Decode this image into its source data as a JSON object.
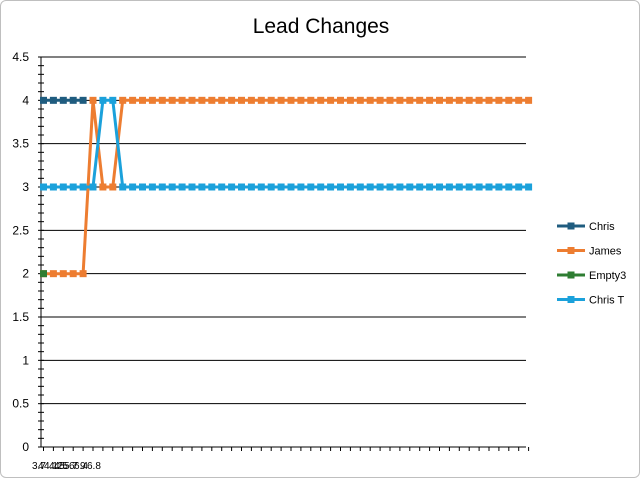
{
  "chart_data": {
    "type": "line",
    "title": "Lead Changes",
    "xlabel": "",
    "ylabel": "",
    "ylim": [
      0,
      4.5
    ],
    "y_ticks": [
      "0",
      "0.5",
      "1",
      "1.5",
      "2",
      "2.5",
      "3",
      "3.5",
      "4",
      "4.5"
    ],
    "x_tick_labels": [
      "3.7",
      "4",
      "4.1",
      "4.2",
      "4.5",
      "5",
      "5.7",
      "6",
      "6.4",
      "9",
      "6.8"
    ],
    "grid": true,
    "legend_position": "right",
    "x": [
      1,
      2,
      3,
      4,
      5,
      6,
      7,
      8,
      9,
      10,
      11,
      12,
      13,
      14,
      15,
      16,
      17,
      18,
      19,
      20,
      21,
      22,
      23,
      24,
      25,
      26,
      27,
      28,
      29,
      30,
      31,
      32,
      33,
      34,
      35,
      36,
      37,
      38,
      39,
      40,
      41,
      42,
      43,
      44,
      45,
      46,
      47,
      48,
      49,
      50
    ],
    "series": [
      {
        "name": "Chris",
        "color": "#1f5c7f",
        "values": [
          4,
          4,
          4,
          4,
          4,
          null,
          null,
          null,
          null,
          null,
          null,
          null,
          null,
          null,
          null,
          null,
          null,
          null,
          null,
          null,
          null,
          null,
          null,
          null,
          null,
          null,
          null,
          null,
          null,
          null,
          null,
          null,
          null,
          null,
          null,
          null,
          null,
          null,
          null,
          null,
          null,
          null,
          null,
          null,
          null,
          null,
          null,
          null,
          null,
          null
        ]
      },
      {
        "name": "James",
        "color": "#ed7d31",
        "values": [
          2,
          2,
          2,
          2,
          2,
          4,
          3,
          3,
          4,
          4,
          4,
          4,
          4,
          4,
          4,
          4,
          4,
          4,
          4,
          4,
          4,
          4,
          4,
          4,
          4,
          4,
          4,
          4,
          4,
          4,
          4,
          4,
          4,
          4,
          4,
          4,
          4,
          4,
          4,
          4,
          4,
          4,
          4,
          4,
          4,
          4,
          4,
          4,
          4,
          4
        ]
      },
      {
        "name": "Empty3",
        "color": "#2e7d32",
        "values": [
          2,
          null,
          null,
          null,
          null,
          null,
          null,
          null,
          null,
          null,
          null,
          null,
          null,
          null,
          null,
          null,
          null,
          null,
          null,
          null,
          null,
          null,
          null,
          null,
          null,
          null,
          null,
          null,
          null,
          null,
          null,
          null,
          null,
          null,
          null,
          null,
          null,
          null,
          null,
          null,
          null,
          null,
          null,
          null,
          null,
          null,
          null,
          null,
          null,
          null
        ]
      },
      {
        "name": "Chris T",
        "color": "#1ba1db",
        "values": [
          3,
          3,
          3,
          3,
          3,
          3,
          4,
          4,
          3,
          3,
          3,
          3,
          3,
          3,
          3,
          3,
          3,
          3,
          3,
          3,
          3,
          3,
          3,
          3,
          3,
          3,
          3,
          3,
          3,
          3,
          3,
          3,
          3,
          3,
          3,
          3,
          3,
          3,
          3,
          3,
          3,
          3,
          3,
          3,
          3,
          3,
          3,
          3,
          3,
          3
        ]
      }
    ]
  }
}
